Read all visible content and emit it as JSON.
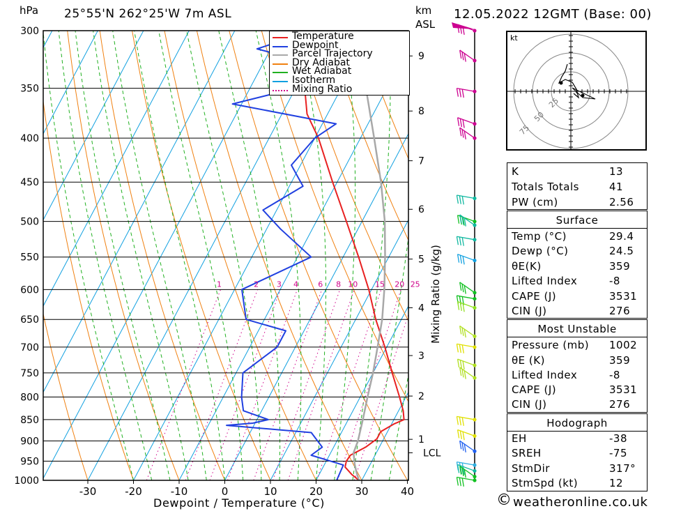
{
  "header": {
    "pressure_unit": "hPa",
    "location": "25°55'N 262°25'W 7m ASL",
    "height_unit": "km",
    "height_ref": "ASL",
    "datetime": "12.05.2022 12GMT (Base: 00)"
  },
  "chart_data": {
    "type": "skew-t",
    "title": "25°55'N 262°25'W 7m ASL",
    "xlabel": "Dewpoint / Temperature (°C)",
    "ylabel": "hPa",
    "secondary_ylabel": "Mixing Ratio (g/kg)",
    "x_ticks": [
      -30,
      -20,
      -10,
      0,
      10,
      20,
      30,
      40
    ],
    "x_tick_labels": [
      "-30",
      "-20",
      "-10",
      "0",
      "10",
      "20",
      "30",
      "40"
    ],
    "pressure_levels": [
      300,
      350,
      400,
      450,
      500,
      550,
      600,
      650,
      700,
      750,
      800,
      850,
      900,
      950,
      1000
    ],
    "pressure_labels": [
      "300",
      "350",
      "400",
      "450",
      "500",
      "550",
      "600",
      "650",
      "700",
      "750",
      "800",
      "850",
      "900",
      "950",
      "1000"
    ],
    "height_km": [
      {
        "label": "9",
        "p": 321
      },
      {
        "label": "8",
        "p": 372
      },
      {
        "label": "7",
        "p": 425
      },
      {
        "label": "6",
        "p": 484
      },
      {
        "label": "5",
        "p": 553
      },
      {
        "label": "4",
        "p": 630
      },
      {
        "label": "3",
        "p": 716
      },
      {
        "label": "2",
        "p": 798
      },
      {
        "label": "1",
        "p": 896
      },
      {
        "label": "LCL",
        "p": 929
      }
    ],
    "mixing_ratio_lines": [
      1,
      2,
      3,
      4,
      6,
      8,
      10,
      15,
      20,
      25
    ],
    "mixing_ratio_labels": [
      "1",
      "2",
      "3",
      "4",
      "6",
      "8",
      "10",
      "15",
      "20",
      "25"
    ],
    "legend": [
      "Temperature",
      "Dewpoint",
      "Parcel Trajectory",
      "Dry Adiabat",
      "Wet Adiabat",
      "Isotherm",
      "Mixing Ratio"
    ],
    "series": [
      {
        "name": "Temperature",
        "color": "#e82020",
        "points": [
          [
            1000,
            29.4
          ],
          [
            985,
            27.2
          ],
          [
            965,
            24.8
          ],
          [
            950,
            24.4
          ],
          [
            935,
            24.6
          ],
          [
            915,
            27.0
          ],
          [
            895,
            28.5
          ],
          [
            878,
            28.5
          ],
          [
            860,
            30.5
          ],
          [
            850,
            32.2
          ],
          [
            830,
            31.0
          ],
          [
            800,
            28.6
          ],
          [
            750,
            24.2
          ],
          [
            700,
            19.6
          ],
          [
            650,
            14.4
          ],
          [
            600,
            9.4
          ],
          [
            550,
            3.4
          ],
          [
            500,
            -3.4
          ],
          [
            450,
            -11.0
          ],
          [
            400,
            -19.2
          ],
          [
            375,
            -24.5
          ],
          [
            350,
            -28.0
          ],
          [
            320,
            -33.0
          ],
          [
            300,
            -37.2
          ]
        ]
      },
      {
        "name": "Dewpoint",
        "color": "#2040e0",
        "points": [
          [
            1000,
            24.5
          ],
          [
            960,
            24.2
          ],
          [
            935,
            16.0
          ],
          [
            915,
            17.5
          ],
          [
            880,
            13.4
          ],
          [
            863,
            -6.0
          ],
          [
            858,
            -0.5
          ],
          [
            850,
            2.5
          ],
          [
            830,
            -4.0
          ],
          [
            800,
            -6.0
          ],
          [
            750,
            -8.5
          ],
          [
            700,
            -4.0
          ],
          [
            670,
            -4.0
          ],
          [
            650,
            -14.0
          ],
          [
            600,
            -18.4
          ],
          [
            550,
            -7.0
          ],
          [
            510,
            -17.0
          ],
          [
            485,
            -23.0
          ],
          [
            455,
            -17.0
          ],
          [
            430,
            -22.0
          ],
          [
            400,
            -20.0
          ],
          [
            385,
            -17.0
          ],
          [
            365,
            -42.0
          ],
          [
            350,
            -30.0
          ],
          [
            330,
            -26.5
          ],
          [
            315,
            -43.0
          ],
          [
            300,
            -33.0
          ]
        ]
      },
      {
        "name": "Parcel Trajectory",
        "color": "#a8a8a8",
        "points": [
          [
            1000,
            29.4
          ],
          [
            980,
            28.0
          ],
          [
            958,
            26.6
          ],
          [
            929,
            25.0
          ],
          [
            900,
            24.6
          ],
          [
            850,
            23.2
          ],
          [
            800,
            21.6
          ],
          [
            750,
            20.0
          ],
          [
            700,
            18.0
          ],
          [
            650,
            15.8
          ],
          [
            600,
            12.8
          ],
          [
            550,
            9.2
          ],
          [
            500,
            5.0
          ],
          [
            450,
            -0.4
          ],
          [
            400,
            -7.0
          ],
          [
            350,
            -14.6
          ],
          [
            300,
            -23.4
          ]
        ]
      }
    ],
    "wind_barbs": [
      {
        "p": 300,
        "color": "#cc0090"
      },
      {
        "p": 325,
        "color": "#cc0090"
      },
      {
        "p": 353,
        "color": "#cc0090"
      },
      {
        "p": 385,
        "color": "#cc0090"
      },
      {
        "p": 400,
        "color": "#cc0090"
      },
      {
        "p": 470,
        "color": "#10b8a0"
      },
      {
        "p": 500,
        "color": "#10c020"
      },
      {
        "p": 505,
        "color": "#10b8a0"
      },
      {
        "p": 525,
        "color": "#10b8a0"
      },
      {
        "p": 555,
        "color": "#10a0e0"
      },
      {
        "p": 605,
        "color": "#10c020"
      },
      {
        "p": 615,
        "color": "#10c020"
      },
      {
        "p": 630,
        "color": "#90e020"
      },
      {
        "p": 680,
        "color": "#b0e020"
      },
      {
        "p": 700,
        "color": "#e0e000"
      },
      {
        "p": 735,
        "color": "#b0e020"
      },
      {
        "p": 760,
        "color": "#b0e020"
      },
      {
        "p": 850,
        "color": "#e0e000"
      },
      {
        "p": 888,
        "color": "#e0e000"
      },
      {
        "p": 925,
        "color": "#2060f0"
      },
      {
        "p": 960,
        "color": "#30b0e0"
      },
      {
        "p": 975,
        "color": "#10b8a0"
      },
      {
        "p": 990,
        "color": "#10c020"
      },
      {
        "p": 1000,
        "color": "#10c020"
      }
    ],
    "hodograph": {
      "unit": "kt",
      "rings": [
        25,
        50,
        75
      ],
      "ring_labels": [
        "25",
        "50",
        "75"
      ]
    }
  },
  "indices": {
    "k_label": "K",
    "k_value": "13",
    "tt_label": "Totals Totals",
    "tt_value": "41",
    "pw_label": "PW (cm)",
    "pw_value": "2.56"
  },
  "surface": {
    "heading": "Surface",
    "temp_label": "Temp (°C)",
    "temp_value": "29.4",
    "dewp_label": "Dewp (°C)",
    "dewp_value": "24.5",
    "theta_label": "θE(K)",
    "theta_value": "359",
    "li_label": "Lifted Index",
    "li_value": "-8",
    "cape_label": "CAPE (J)",
    "cape_value": "3531",
    "cin_label": "CIN (J)",
    "cin_value": "276"
  },
  "most_unstable": {
    "heading": "Most Unstable",
    "pressure_label": "Pressure (mb)",
    "pressure_value": "1002",
    "theta_label": "θE (K)",
    "theta_value": "359",
    "li_label": "Lifted Index",
    "li_value": "-8",
    "cape_label": "CAPE (J)",
    "cape_value": "3531",
    "cin_label": "CIN (J)",
    "cin_value": "276"
  },
  "hodograph_table": {
    "heading": "Hodograph",
    "eh_label": "EH",
    "eh_value": "-38",
    "sreh_label": "SREH",
    "sreh_value": "-75",
    "stmdir_label": "StmDir",
    "stmdir_value": "317°",
    "stmspd_label": "StmSpd (kt)",
    "stmspd_value": "12"
  },
  "footer": {
    "copyright_symbol": "©",
    "site": "weatheronline.co.uk"
  },
  "colors": {
    "temperature": "#e82020",
    "dewpoint": "#2040e0",
    "parcel": "#a8a8a8",
    "dry_adiabat": "#f08010",
    "wet_adiabat": "#20b020",
    "isotherm": "#10a0e0",
    "mixing_ratio": "#d0008a"
  }
}
